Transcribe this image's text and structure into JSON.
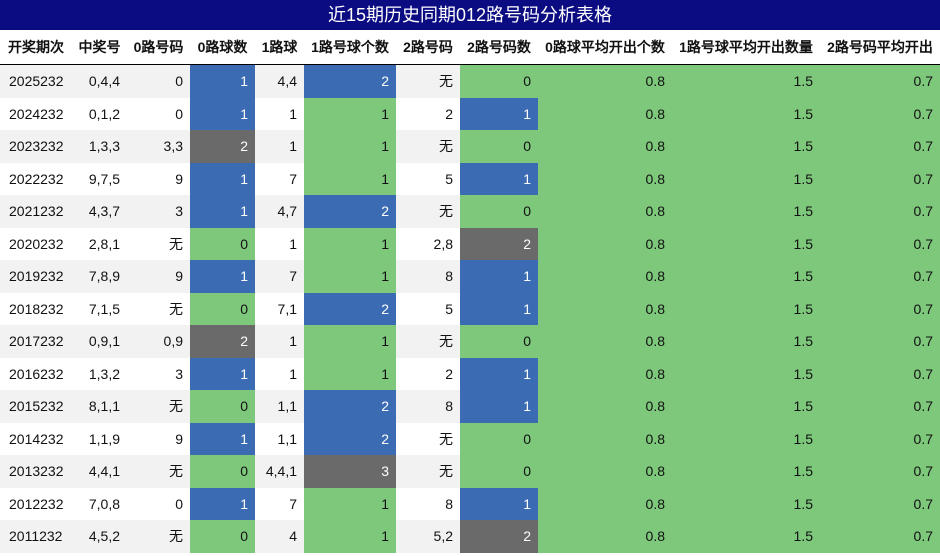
{
  "title": "近15期历史同期012路号码分析表格",
  "table": {
    "headers": [
      "开奖期次",
      "中奖号",
      "0路号码",
      "0路球数",
      "1路球",
      "1路号球个数",
      "2路号码",
      "2路号码数",
      "0路球平均开出个数",
      "1路号球平均开出数量",
      "2路号码平均开出"
    ],
    "rows": [
      [
        2025232,
        "0,4,4",
        "0",
        1,
        "4,4",
        2,
        "无",
        0,
        0.8,
        1.5,
        0.7
      ],
      [
        2024232,
        "0,1,2",
        "0",
        1,
        "1",
        1,
        "2",
        1,
        0.8,
        1.5,
        0.7
      ],
      [
        2023232,
        "1,3,3",
        "3,3",
        2,
        "1",
        1,
        "无",
        0,
        0.8,
        1.5,
        0.7
      ],
      [
        2022232,
        "9,7,5",
        "9",
        1,
        "7",
        1,
        "5",
        1,
        0.8,
        1.5,
        0.7
      ],
      [
        2021232,
        "4,3,7",
        "3",
        1,
        "4,7",
        2,
        "无",
        0,
        0.8,
        1.5,
        0.7
      ],
      [
        2020232,
        "2,8,1",
        "无",
        0,
        "1",
        1,
        "2,8",
        2,
        0.8,
        1.5,
        0.7
      ],
      [
        2019232,
        "7,8,9",
        "9",
        1,
        "7",
        1,
        "8",
        1,
        0.8,
        1.5,
        0.7
      ],
      [
        2018232,
        "7,1,5",
        "无",
        0,
        "7,1",
        2,
        "5",
        1,
        0.8,
        1.5,
        0.7
      ],
      [
        2017232,
        "0,9,1",
        "0,9",
        2,
        "1",
        1,
        "无",
        0,
        0.8,
        1.5,
        0.7
      ],
      [
        2016232,
        "1,3,2",
        "3",
        1,
        "1",
        1,
        "2",
        1,
        0.8,
        1.5,
        0.7
      ],
      [
        2015232,
        "8,1,1",
        "无",
        0,
        "1,1",
        2,
        "8",
        1,
        0.8,
        1.5,
        0.7
      ],
      [
        2014232,
        "1,1,9",
        "9",
        1,
        "1,1",
        2,
        "无",
        0,
        0.8,
        1.5,
        0.7
      ],
      [
        2013232,
        "4,4,1",
        "无",
        0,
        "4,4,1",
        3,
        "无",
        0,
        0.8,
        1.5,
        0.7
      ],
      [
        2012232,
        "7,0,8",
        "0",
        1,
        "7",
        1,
        "8",
        1,
        0.8,
        1.5,
        0.7
      ],
      [
        2011232,
        "4,5,2",
        "无",
        0,
        "4",
        1,
        "5,2",
        2,
        0.8,
        1.5,
        0.7
      ]
    ]
  }
}
